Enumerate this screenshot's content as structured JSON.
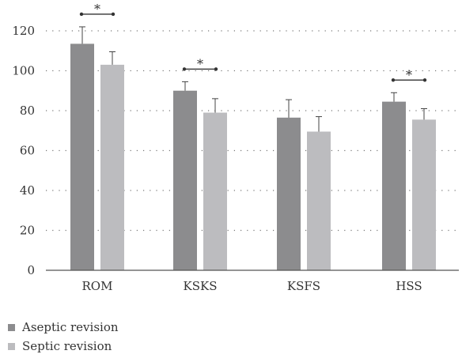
{
  "chart_data": {
    "type": "bar",
    "categories": [
      "ROM",
      "KSKS",
      "KSFS",
      "HSS"
    ],
    "series": [
      {
        "name": "Aseptic revision",
        "values": [
          113.5,
          90,
          76.5,
          84.5
        ],
        "errors": [
          8.5,
          4.5,
          9,
          4.5
        ],
        "color": "#8c8c8e"
      },
      {
        "name": "Septic revision",
        "values": [
          103,
          79,
          69.5,
          75.5
        ],
        "errors": [
          6.5,
          7,
          7.5,
          5.5
        ],
        "color": "#bcbcbf"
      }
    ],
    "y_ticks": [
      "0",
      "20",
      "40",
      "60",
      "80",
      "100",
      "120"
    ],
    "ylim": [
      0,
      125
    ],
    "grid": "dotted horizontal",
    "legend_position": "bottom-left",
    "significance": [
      {
        "category": "ROM",
        "label": "*"
      },
      {
        "category": "KSKS",
        "label": "*"
      },
      {
        "category": "HSS",
        "label": "*"
      }
    ]
  }
}
